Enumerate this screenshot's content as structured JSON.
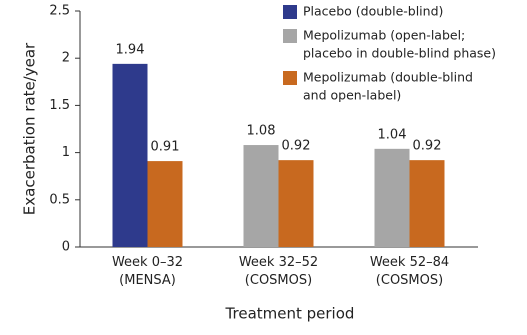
{
  "chart_data": {
    "type": "bar",
    "y_label": "Exacerbation rate/year",
    "x_label": "Treatment period",
    "categories": [
      [
        "Week 0–32",
        "(MENSA)"
      ],
      [
        "Week 32–52",
        "(COSMOS)"
      ],
      [
        "Week 52–84",
        "(COSMOS)"
      ]
    ],
    "series": [
      {
        "name": [
          "Placebo (double-blind)"
        ],
        "color": "#2e3a8c",
        "values": [
          1.94,
          null,
          null
        ]
      },
      {
        "name": [
          "Mepolizumab (open-label;",
          "placebo in double-blind phase)"
        ],
        "color": "#a6a6a6",
        "values": [
          null,
          1.08,
          1.04
        ]
      },
      {
        "name": [
          "Mepolizumab (double-blind",
          "and open-label)"
        ],
        "color": "#c8691f",
        "values": [
          0.91,
          0.92,
          0.92
        ]
      }
    ],
    "ylim": [
      0,
      2.5
    ],
    "yticks": [
      0,
      0.5,
      1,
      1.5,
      2,
      2.5
    ],
    "grid": false,
    "legend": "top-right"
  }
}
